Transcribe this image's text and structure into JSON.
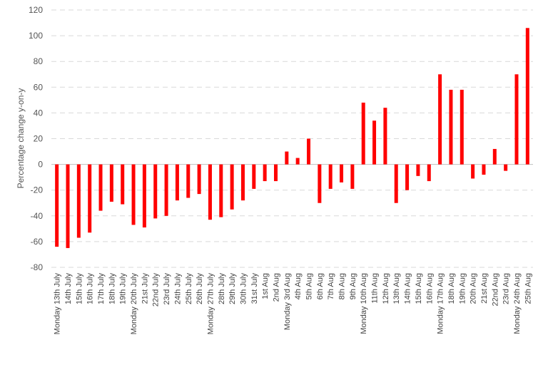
{
  "chart_data": {
    "type": "bar",
    "ylabel": "Percentage change y-on-y",
    "xlabel": "",
    "title": "",
    "ylim": [
      -80,
      120
    ],
    "yticks": [
      -80,
      -60,
      -40,
      -20,
      0,
      20,
      40,
      60,
      80,
      100,
      120
    ],
    "grid": true,
    "legend": "none",
    "bar_color": "#ff0000",
    "categories": [
      "Monday 13th July",
      "14th July",
      "15th July",
      "16th July",
      "17th July",
      "18th July",
      "19th July",
      "Monday 20th July",
      "21st July",
      "22nd July",
      "23rd July",
      "24th July",
      "25th July",
      "26th July",
      "Monday 27th July",
      "28th July",
      "29th July",
      "30th July",
      "31st July",
      "1st Aug",
      "2nd Aug",
      "Monday 3rd Aug",
      "4th Aug",
      "5th Aug",
      "6th Aug",
      "7th Aug",
      "8th Aug",
      "9th Aug",
      "Monday 10th Aug",
      "11th Aug",
      "12th Aug",
      "13th Aug",
      "14th Aug",
      "15th Aug",
      "16th Aug",
      "Monday 17th Aug",
      "18th Aug",
      "19th Aug",
      "20th Aug",
      "21st Aug",
      "22nd Aug",
      "23rd Aug",
      "Monday 24th Aug",
      "25th Aug"
    ],
    "values": [
      -64,
      -65,
      -57,
      -53,
      -36,
      -29,
      -31,
      -47,
      -49,
      -42,
      -40,
      -28,
      -26,
      -23,
      -43,
      -41,
      -35,
      -28,
      -19,
      -13,
      -13,
      10,
      5,
      20,
      -30,
      -19,
      -14,
      -19,
      48,
      34,
      44,
      -30,
      -20,
      -9,
      -13,
      70,
      58,
      58,
      -11,
      -8,
      12,
      -5,
      70,
      106
    ]
  }
}
